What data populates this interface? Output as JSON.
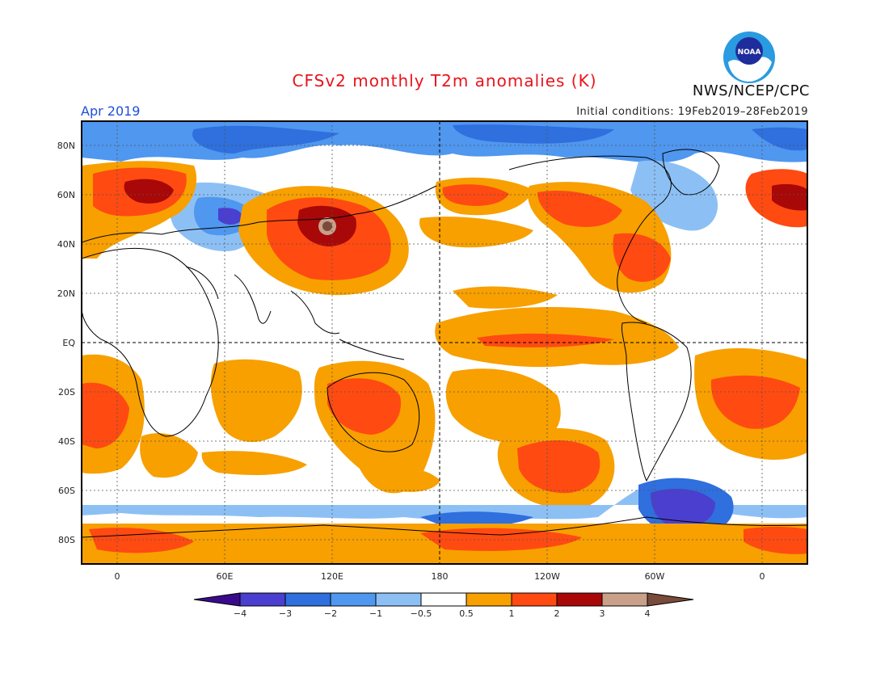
{
  "title": "CFSv2 monthly T2m anomalies (K)",
  "valid_period": "Apr 2019",
  "agency": "NWS/NCEP/CPC",
  "initial_conditions": "Initial conditions: 19Feb2019–28Feb2019",
  "logo_text": "NOAA",
  "lat_labels": [
    "80N",
    "60N",
    "40N",
    "20N",
    "EQ",
    "20S",
    "40S",
    "60S",
    "80S"
  ],
  "lon_labels": [
    "0",
    "60E",
    "120E",
    "180",
    "120W",
    "60W",
    "0"
  ],
  "colorbar": {
    "levels": [
      "−4",
      "−3",
      "−2",
      "−1",
      "−0.5",
      "0.5",
      "1",
      "2",
      "3",
      "4"
    ],
    "colors": [
      "#3a0a8c",
      "#4a3fcf",
      "#2f6fde",
      "#4f97ef",
      "#8cc0f5",
      "#ffffff",
      "#f7a000",
      "#ff4a12",
      "#a80808",
      "#c9a08a",
      "#7a4a3a"
    ]
  },
  "colors": {
    "title": "#e8141c",
    "period": "#1f4fd8",
    "land_outline": "#000000"
  }
}
